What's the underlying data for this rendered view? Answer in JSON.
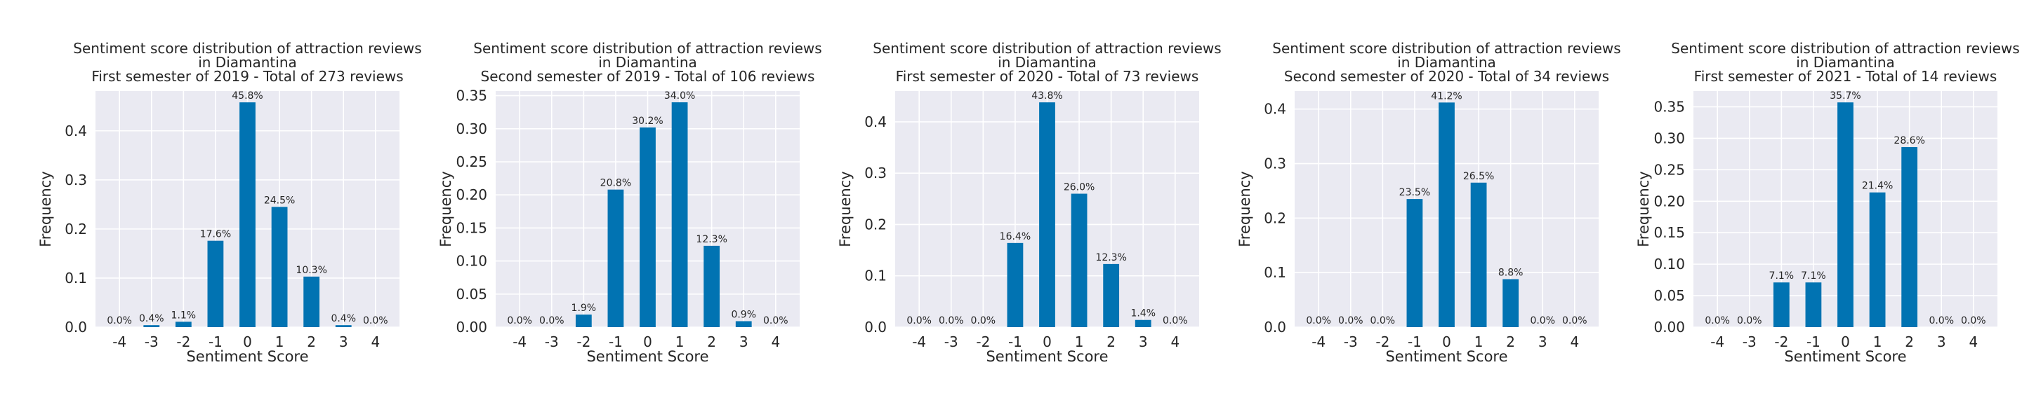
{
  "style": {
    "bar_color": "#0173b2",
    "plot_background": "#eaeaf2",
    "grid_color": "#ffffff"
  },
  "chart_data": [
    {
      "type": "bar",
      "title": [
        "Sentiment score distribution of attraction reviews",
        "in Diamantina",
        "First semester of 2019 - Total of 273 reviews"
      ],
      "xlabel": "Sentiment Score",
      "ylabel": "Frequency",
      "categories": [
        "-4",
        "-3",
        "-2",
        "-1",
        "0",
        "1",
        "2",
        "3",
        "4"
      ],
      "values": [
        0.0,
        0.004,
        0.011,
        0.176,
        0.458,
        0.245,
        0.103,
        0.004,
        0.0
      ],
      "bar_labels": [
        "0.0%",
        "0.4%",
        "1.1%",
        "17.6%",
        "45.8%",
        "24.5%",
        "10.3%",
        "0.4%",
        "0.0%"
      ],
      "yticks": [
        0.0,
        0.1,
        0.2,
        0.3,
        0.4
      ],
      "ytick_labels": [
        "0.0",
        "0.1",
        "0.2",
        "0.3",
        "0.4"
      ],
      "ylim": [
        0,
        0.481
      ],
      "grid": true
    },
    {
      "type": "bar",
      "title": [
        "Sentiment score distribution of attraction reviews",
        "in Diamantina",
        "Second semester of 2019 - Total of 106 reviews"
      ],
      "xlabel": "Sentiment Score",
      "ylabel": "Frequency",
      "categories": [
        "-4",
        "-3",
        "-2",
        "-1",
        "0",
        "1",
        "2",
        "3",
        "4"
      ],
      "values": [
        0.0,
        0.0,
        0.019,
        0.208,
        0.302,
        0.34,
        0.123,
        0.009,
        0.0
      ],
      "bar_labels": [
        "0.0%",
        "0.0%",
        "1.9%",
        "20.8%",
        "30.2%",
        "34.0%",
        "12.3%",
        "0.9%",
        "0.0%"
      ],
      "yticks": [
        0.0,
        0.05,
        0.1,
        0.15,
        0.2,
        0.25,
        0.3,
        0.35
      ],
      "ytick_labels": [
        "0.00",
        "0.05",
        "0.10",
        "0.15",
        "0.20",
        "0.25",
        "0.30",
        "0.35"
      ],
      "ylim": [
        0,
        0.357
      ],
      "grid": true
    },
    {
      "type": "bar",
      "title": [
        "Sentiment score distribution of attraction reviews",
        "in Diamantina",
        "First semester of 2020 - Total of 73 reviews"
      ],
      "xlabel": "Sentiment Score",
      "ylabel": "Frequency",
      "categories": [
        "-4",
        "-3",
        "-2",
        "-1",
        "0",
        "1",
        "2",
        "3",
        "4"
      ],
      "values": [
        0.0,
        0.0,
        0.0,
        0.164,
        0.438,
        0.26,
        0.123,
        0.014,
        0.0
      ],
      "bar_labels": [
        "0.0%",
        "0.0%",
        "0.0%",
        "16.4%",
        "43.8%",
        "26.0%",
        "12.3%",
        "1.4%",
        "0.0%"
      ],
      "yticks": [
        0.0,
        0.1,
        0.2,
        0.3,
        0.4
      ],
      "ytick_labels": [
        "0.0",
        "0.1",
        "0.2",
        "0.3",
        "0.4"
      ],
      "ylim": [
        0,
        0.46
      ],
      "grid": true
    },
    {
      "type": "bar",
      "title": [
        "Sentiment score distribution of attraction reviews",
        "in Diamantina",
        "Second semester of 2020 - Total of 34 reviews"
      ],
      "xlabel": "Sentiment Score",
      "ylabel": "Frequency",
      "categories": [
        "-4",
        "-3",
        "-2",
        "-1",
        "0",
        "1",
        "2",
        "3",
        "4"
      ],
      "values": [
        0.0,
        0.0,
        0.0,
        0.235,
        0.412,
        0.265,
        0.088,
        0.0,
        0.0
      ],
      "bar_labels": [
        "0.0%",
        "0.0%",
        "0.0%",
        "23.5%",
        "41.2%",
        "26.5%",
        "8.8%",
        "0.0%",
        "0.0%"
      ],
      "yticks": [
        0.0,
        0.1,
        0.2,
        0.3,
        0.4
      ],
      "ytick_labels": [
        "0.0",
        "0.1",
        "0.2",
        "0.3",
        "0.4"
      ],
      "ylim": [
        0,
        0.433
      ],
      "grid": true
    },
    {
      "type": "bar",
      "title": [
        "Sentiment score distribution of attraction reviews",
        "in Diamantina",
        "First semester of 2021 - Total of 14 reviews"
      ],
      "xlabel": "Sentiment Score",
      "ylabel": "Frequency",
      "categories": [
        "-4",
        "-3",
        "-2",
        "-1",
        "0",
        "1",
        "2",
        "3",
        "4"
      ],
      "values": [
        0.0,
        0.0,
        0.071,
        0.071,
        0.357,
        0.214,
        0.286,
        0.0,
        0.0
      ],
      "bar_labels": [
        "0.0%",
        "0.0%",
        "7.1%",
        "7.1%",
        "35.7%",
        "21.4%",
        "28.6%",
        "0.0%",
        "0.0%"
      ],
      "yticks": [
        0.0,
        0.05,
        0.1,
        0.15,
        0.2,
        0.25,
        0.3,
        0.35
      ],
      "ytick_labels": [
        "0.00",
        "0.05",
        "0.10",
        "0.15",
        "0.20",
        "0.25",
        "0.30",
        "0.35"
      ],
      "ylim": [
        0,
        0.375
      ],
      "grid": true
    }
  ]
}
